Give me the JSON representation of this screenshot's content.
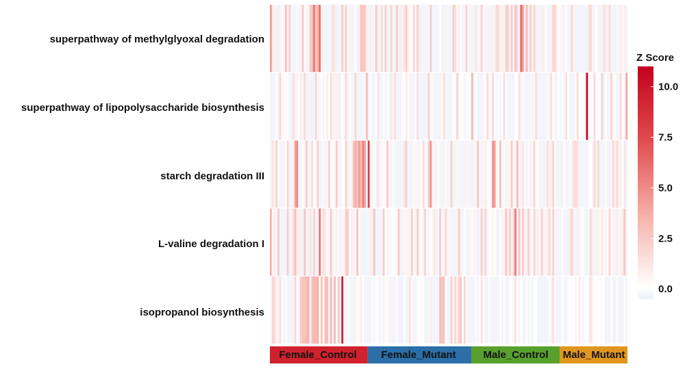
{
  "chart_data": {
    "type": "heatmap",
    "rows": [
      {
        "label": "superpathway of methylglyoxal degradation",
        "base": 0.9,
        "jitter": 1.6,
        "spikes": [
          0,
          8,
          10,
          17,
          21,
          22,
          23,
          24,
          25,
          26,
          38,
          40,
          48,
          50,
          56,
          61,
          67,
          72,
          78,
          85,
          97,
          104,
          112,
          120,
          126,
          128,
          130,
          133,
          134,
          136,
          138,
          140,
          150,
          160,
          170,
          180,
          190
        ],
        "spike_vals": [
          3.8,
          2.4,
          1.9,
          2.2,
          2.0,
          2.5,
          5.2,
          2.3,
          2.8,
          5.6,
          2.0,
          1.8,
          2.4,
          2.2,
          2.0,
          1.8,
          2.0,
          1.9,
          1.8,
          2.0,
          2.0,
          1.8,
          1.8,
          1.6,
          1.8,
          2.0,
          2.5,
          5.8,
          3.5,
          2.8,
          2.0,
          1.7,
          1.6,
          1.6,
          1.5,
          1.5,
          1.6
        ]
      },
      {
        "label": "superpathway of lipopolysaccharide biosynthesis",
        "base": 0.2,
        "jitter": 0.9,
        "spikes": [
          5,
          12,
          18,
          24,
          32,
          40,
          45,
          51,
          57,
          66,
          78,
          84,
          92,
          99,
          107,
          115,
          118,
          124,
          132,
          141,
          149,
          157,
          163,
          168,
          172,
          176,
          181,
          186,
          189,
          190
        ],
        "spike_vals": [
          1.6,
          1.4,
          1.5,
          1.6,
          1.3,
          1.4,
          1.6,
          2.6,
          1.2,
          1.3,
          1.3,
          1.8,
          1.4,
          1.6,
          2.8,
          1.3,
          1.5,
          1.4,
          1.2,
          1.4,
          1.2,
          1.3,
          1.4,
          10.8,
          1.5,
          1.8,
          1.6,
          1.4,
          3.2,
          1.8
        ]
      },
      {
        "label": "starch degradation III",
        "base": 0.5,
        "jitter": 1.3,
        "spikes": [
          3,
          9,
          13,
          14,
          19,
          25,
          31,
          35,
          40,
          44,
          45,
          46,
          47,
          48,
          49,
          50,
          52,
          62,
          72,
          84,
          85,
          96,
          110,
          118,
          119,
          122,
          128,
          131,
          140,
          150,
          162,
          172,
          182
        ],
        "spike_vals": [
          1.8,
          1.7,
          3.6,
          4.4,
          2.0,
          1.8,
          1.8,
          2.1,
          1.9,
          2.4,
          3.2,
          2.4,
          3.9,
          2.6,
          4.8,
          3.6,
          7.5,
          2.2,
          1.8,
          2.1,
          4.0,
          1.8,
          2.2,
          4.3,
          3.5,
          2.6,
          2.0,
          2.6,
          1.7,
          1.6,
          1.5,
          1.6,
          1.5
        ]
      },
      {
        "label": "L-valine degradation I",
        "base": 0.8,
        "jitter": 1.6,
        "spikes": [
          0,
          4,
          9,
          13,
          18,
          23,
          26,
          32,
          40,
          46,
          55,
          60,
          68,
          75,
          78,
          82,
          90,
          100,
          112,
          125,
          127,
          130,
          132,
          134,
          137,
          140,
          150,
          160,
          170,
          180,
          188
        ],
        "spike_vals": [
          3.0,
          2.2,
          2.0,
          2.5,
          2.4,
          1.8,
          5.4,
          2.0,
          2.0,
          2.4,
          2.3,
          2.0,
          2.0,
          1.9,
          2.0,
          1.8,
          2.0,
          2.0,
          1.9,
          2.2,
          2.0,
          5.2,
          2.3,
          2.0,
          1.8,
          1.7,
          1.8,
          1.8,
          1.5,
          1.6,
          2.2
        ]
      },
      {
        "label": "isopropanol biosynthesis",
        "base": 0.2,
        "jitter": 0.7,
        "spikes": [
          1,
          2,
          5,
          13,
          16,
          17,
          18,
          19,
          20,
          22,
          23,
          24,
          25,
          27,
          29,
          30,
          32,
          34,
          36,
          38,
          74,
          90,
          91,
          92,
          96,
          98,
          100,
          101,
          103,
          112,
          130,
          150,
          170
        ],
        "spike_vals": [
          1.6,
          1.4,
          1.3,
          1.6,
          2.0,
          2.2,
          2.4,
          2.6,
          3.0,
          2.4,
          2.8,
          2.6,
          3.1,
          2.4,
          2.6,
          2.4,
          2.6,
          2.8,
          2.2,
          9.5,
          1.2,
          2.6,
          2.2,
          2.4,
          1.8,
          1.6,
          1.8,
          2.0,
          1.6,
          1.3,
          1.2,
          1.2,
          1.2
        ]
      }
    ],
    "n_columns": 190,
    "groups": [
      {
        "name": "Female_Control",
        "columns": 52,
        "color": "#d0222e"
      },
      {
        "name": "Female_Mutant",
        "columns": 55,
        "color": "#2b6ea8"
      },
      {
        "name": "Male_Control",
        "columns": 47,
        "color": "#57a02e"
      },
      {
        "name": "Male_Mutant",
        "columns": 36,
        "color": "#e0961e"
      }
    ],
    "legend": {
      "title": "Z Score",
      "ticks": [
        "10.0",
        "7.5",
        "5.0",
        "2.5",
        "0.0"
      ],
      "tick_values": [
        10,
        7.5,
        5,
        2.5,
        0
      ],
      "range": [
        -0.5,
        11
      ],
      "low_color": "#f5f7fc",
      "zero_color": "#ffffff",
      "high_color": "#c4001e"
    }
  }
}
